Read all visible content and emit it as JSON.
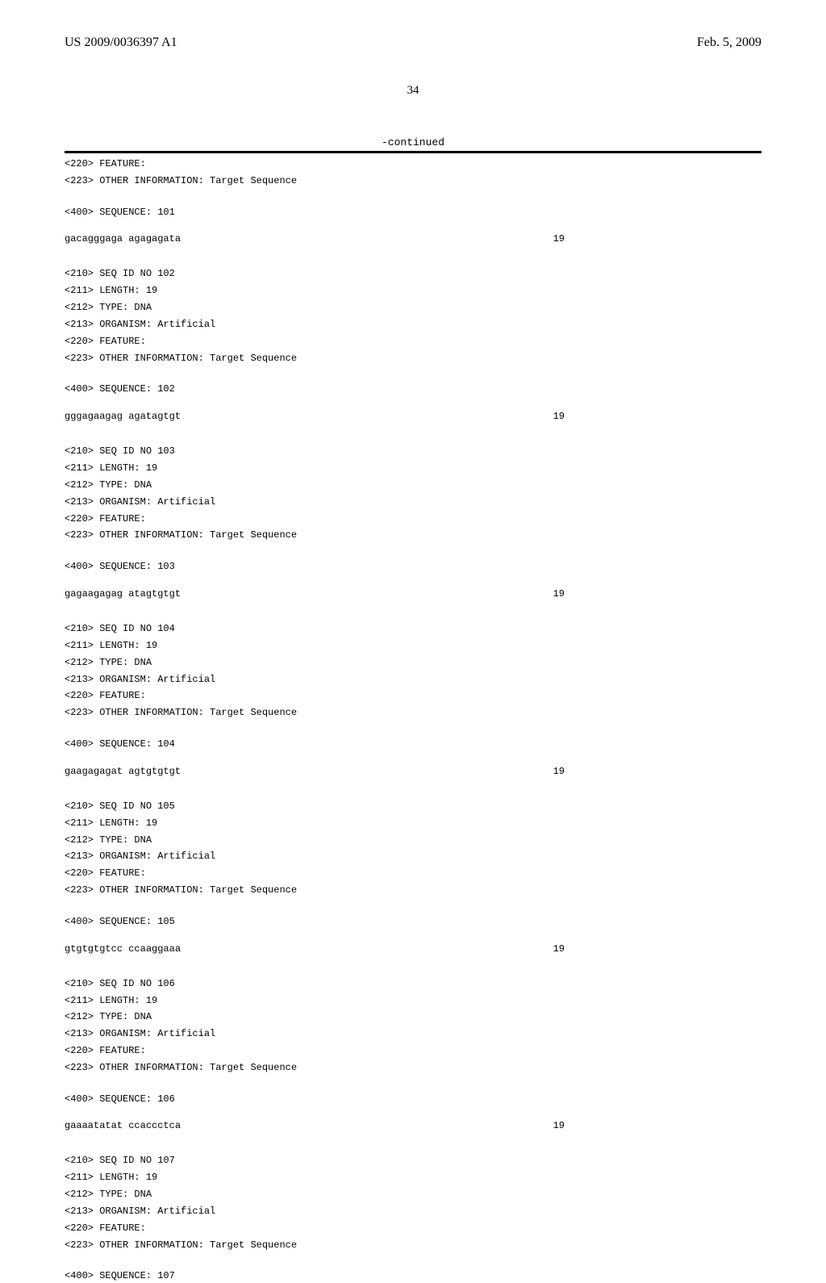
{
  "header": {
    "pub_number": "US 2009/0036397 A1",
    "pub_date": "Feb. 5, 2009"
  },
  "page_number": "34",
  "continued_label": "-continued",
  "seq_count": "19",
  "common": {
    "length_line": "<211> LENGTH: 19",
    "type_line": "<212> TYPE: DNA",
    "organism_line": "<213> ORGANISM: Artificial",
    "feature_line": "<220> FEATURE:",
    "other_info_line": "<223> OTHER INFORMATION: Target Sequence"
  },
  "blocks": [
    {
      "pre_lines": [
        "<220> FEATURE:",
        "<223> OTHER INFORMATION: Target Sequence"
      ],
      "seq_label": "<400> SEQUENCE: 101",
      "sequence": "gacagggaga agagagata"
    },
    {
      "id_line": "<210> SEQ ID NO 102",
      "seq_label": "<400> SEQUENCE: 102",
      "sequence": "gggagaagag agatagtgt"
    },
    {
      "id_line": "<210> SEQ ID NO 103",
      "seq_label": "<400> SEQUENCE: 103",
      "sequence": "gagaagagag atagtgtgt"
    },
    {
      "id_line": "<210> SEQ ID NO 104",
      "seq_label": "<400> SEQUENCE: 104",
      "sequence": "gaagagagat agtgtgtgt"
    },
    {
      "id_line": "<210> SEQ ID NO 105",
      "seq_label": "<400> SEQUENCE: 105",
      "sequence": "gtgtgtgtcc ccaaggaaa"
    },
    {
      "id_line": "<210> SEQ ID NO 106",
      "seq_label": "<400> SEQUENCE: 106",
      "sequence": "gaaaatatat ccaccctca"
    },
    {
      "id_line": "<210> SEQ ID NO 107",
      "seq_label": "<400> SEQUENCE: 107",
      "sequence": null
    }
  ]
}
